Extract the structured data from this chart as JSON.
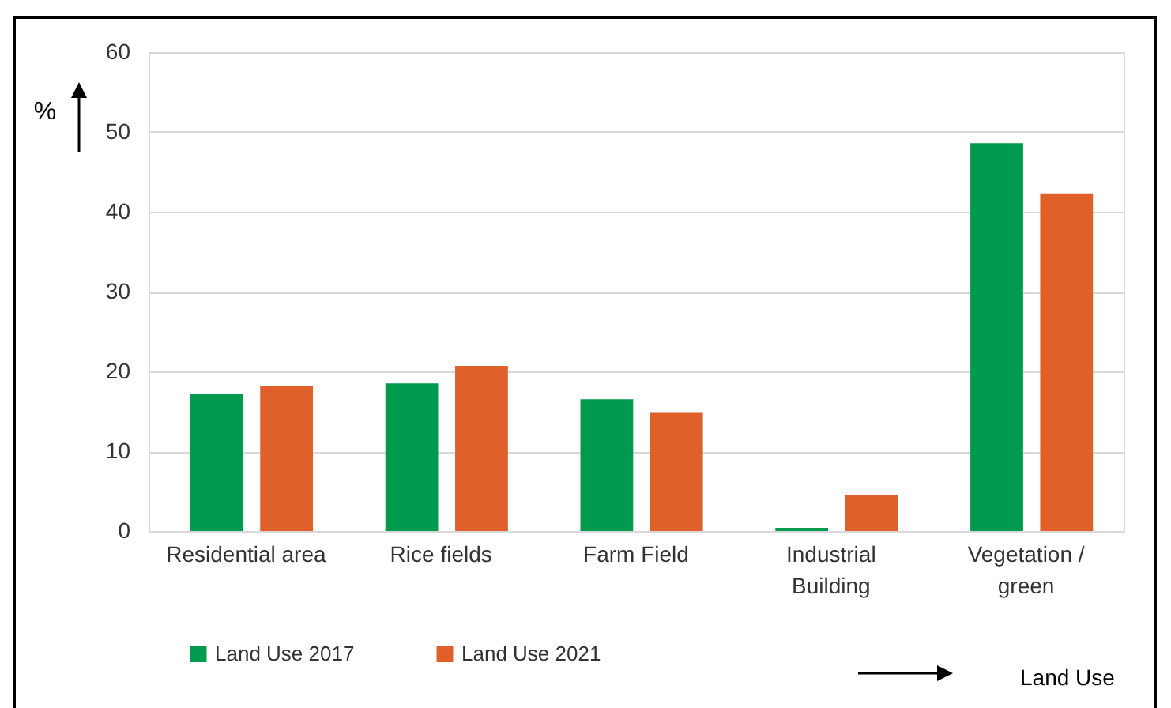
{
  "chart_data": {
    "type": "bar",
    "xlabel": "Land Use",
    "ylabel": "%",
    "categories": [
      "Residential area",
      "Rice fields",
      "Farm Field",
      "Industrial Building",
      "Vegetation / green"
    ],
    "series": [
      {
        "name": "Land Use 2017",
        "color": "#009a4e",
        "values": [
          17.2,
          18.5,
          16.5,
          0.4,
          48.6
        ]
      },
      {
        "name": "Land Use 2021",
        "color": "#e0602a",
        "values": [
          18.2,
          20.7,
          14.8,
          4.5,
          42.3
        ]
      }
    ],
    "ylim": [
      0,
      60
    ],
    "yticks": [
      0,
      10,
      20,
      30,
      40,
      50,
      60
    ],
    "grid": "y",
    "legend": "bottom left"
  }
}
